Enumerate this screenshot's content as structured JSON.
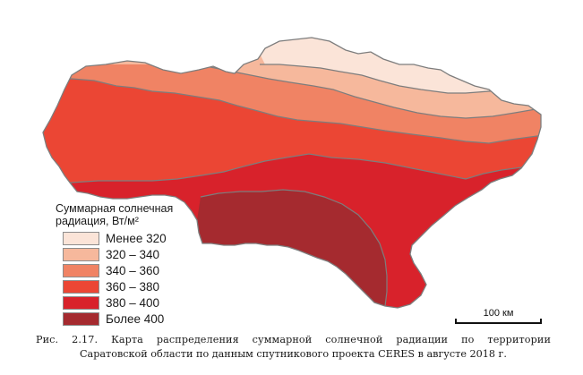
{
  "legend": {
    "title_line1": "Суммарная солнечная",
    "title_line2": "радиация, Вт/м²",
    "items": [
      {
        "label": "Менее 320",
        "color": "#fbe4d8"
      },
      {
        "label": "320 – 340",
        "color": "#f6b89c"
      },
      {
        "label": "340 – 360",
        "color": "#f08364"
      },
      {
        "label": "360 – 380",
        "color": "#eb4634"
      },
      {
        "label": "380 – 400",
        "color": "#d8222b"
      },
      {
        "label": "Более 400",
        "color": "#a52a2f"
      }
    ]
  },
  "scale": {
    "label": "100 км"
  },
  "caption": {
    "line1": "Рис. 2.17. Карта распределения суммарной солнечной радиации по территории",
    "line2": "Саратовской области по данным спутникового проекта CERES в августе 2018 г."
  },
  "colors": {
    "boundary": "#7d7d7d"
  }
}
